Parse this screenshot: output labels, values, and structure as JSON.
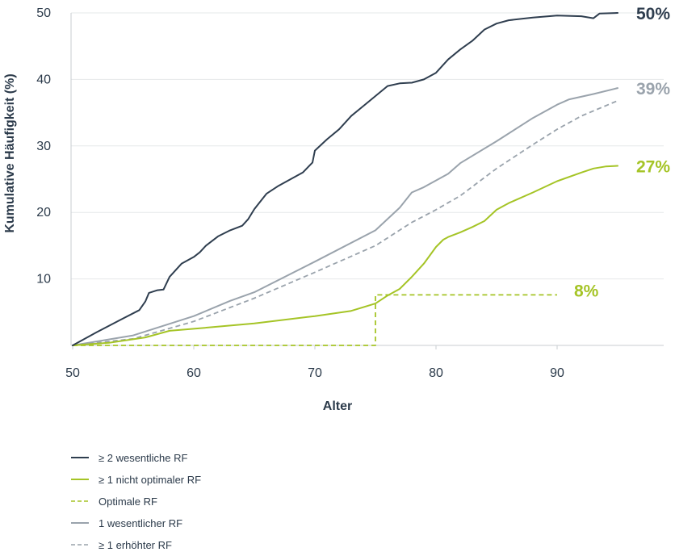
{
  "chart_data": {
    "type": "line",
    "xlabel": "Alter",
    "ylabel": "Kumulative Häufigkeit (%)",
    "xlim": [
      50,
      97
    ],
    "ylim": [
      0,
      50
    ],
    "x_ticks": [
      "50",
      "60",
      "70",
      "80",
      "90"
    ],
    "y_ticks": [
      "10",
      "20",
      "30",
      "40",
      "50"
    ],
    "grid": "horizontal",
    "legend_position": "bottom-left",
    "series": [
      {
        "name": "≥ 2 wesentliche RF",
        "color": "#2f3e4f",
        "style": "solid",
        "end_label": "50%",
        "x": [
          50,
          52,
          54,
          55.5,
          56,
          56.3,
          57,
          57.5,
          58,
          59,
          60,
          60.5,
          61,
          62,
          63,
          64,
          64.5,
          65,
          66,
          67,
          68,
          69,
          69.8,
          70,
          71,
          72,
          73,
          74,
          75,
          76,
          77,
          78,
          79,
          80,
          80.5,
          81,
          82,
          83,
          84,
          85,
          86,
          88,
          90,
          92,
          93,
          93.5,
          95
        ],
        "y": [
          0,
          2,
          3.9,
          5.3,
          6.6,
          7.9,
          8.3,
          8.4,
          10.3,
          12.3,
          13.3,
          14,
          15,
          16.4,
          17.3,
          18,
          19,
          20.5,
          22.8,
          24,
          25,
          26,
          27.5,
          29.3,
          31,
          32.5,
          34.5,
          36,
          37.5,
          39,
          39.4,
          39.5,
          40,
          41,
          42,
          43,
          44.5,
          45.8,
          47.5,
          48.4,
          48.9,
          49.3,
          49.6,
          49.5,
          49.2,
          49.9,
          50
        ]
      },
      {
        "name": "≥ 1 nicht optimaler RF",
        "color": "#a5c426",
        "style": "solid",
        "end_label": "27%",
        "x": [
          50,
          53,
          56,
          58,
          60,
          65,
          70,
          73,
          75,
          76,
          77,
          78,
          79,
          80,
          80.6,
          81,
          82,
          83,
          84,
          85,
          86,
          88,
          90,
          92,
          93,
          94,
          95
        ],
        "y": [
          0,
          0.4,
          1.2,
          2.2,
          2.5,
          3.3,
          4.4,
          5.2,
          6.3,
          7.5,
          8.5,
          10.3,
          12.3,
          14.8,
          15.9,
          16.3,
          17,
          17.8,
          18.7,
          20.4,
          21.4,
          23,
          24.7,
          26,
          26.6,
          26.9,
          27
        ]
      },
      {
        "name": "Optimale RF",
        "color": "#a5c426",
        "style": "dashed",
        "end_label": "8%",
        "x": [
          50,
          75,
          75,
          90
        ],
        "y": [
          0,
          0,
          7.6,
          7.6
        ]
      },
      {
        "name": "1 wesentlicher RF",
        "color": "#9aa3ac",
        "style": "solid",
        "end_label": "39%",
        "x": [
          50,
          55,
          60,
          63,
          65,
          70,
          75,
          77,
          78,
          79,
          80,
          81,
          82,
          85,
          88,
          90,
          91,
          93,
          95
        ],
        "y": [
          0,
          1.5,
          4.4,
          6.7,
          8,
          12.6,
          17.3,
          20.7,
          23,
          23.8,
          24.8,
          25.8,
          27.4,
          30.7,
          34.2,
          36.2,
          37,
          37.8,
          38.7
        ]
      },
      {
        "name": "≥ 1 erhöhter RF",
        "color": "#9aa3ac",
        "style": "dashed",
        "end_label": "",
        "x": [
          50,
          55,
          60,
          65,
          70,
          75,
          78,
          80,
          82,
          85,
          88,
          90,
          92,
          95
        ],
        "y": [
          0,
          1,
          3.6,
          7.1,
          11,
          15,
          18.5,
          20.4,
          22.5,
          26.6,
          30.2,
          32.5,
          34.5,
          36.8
        ]
      }
    ]
  }
}
